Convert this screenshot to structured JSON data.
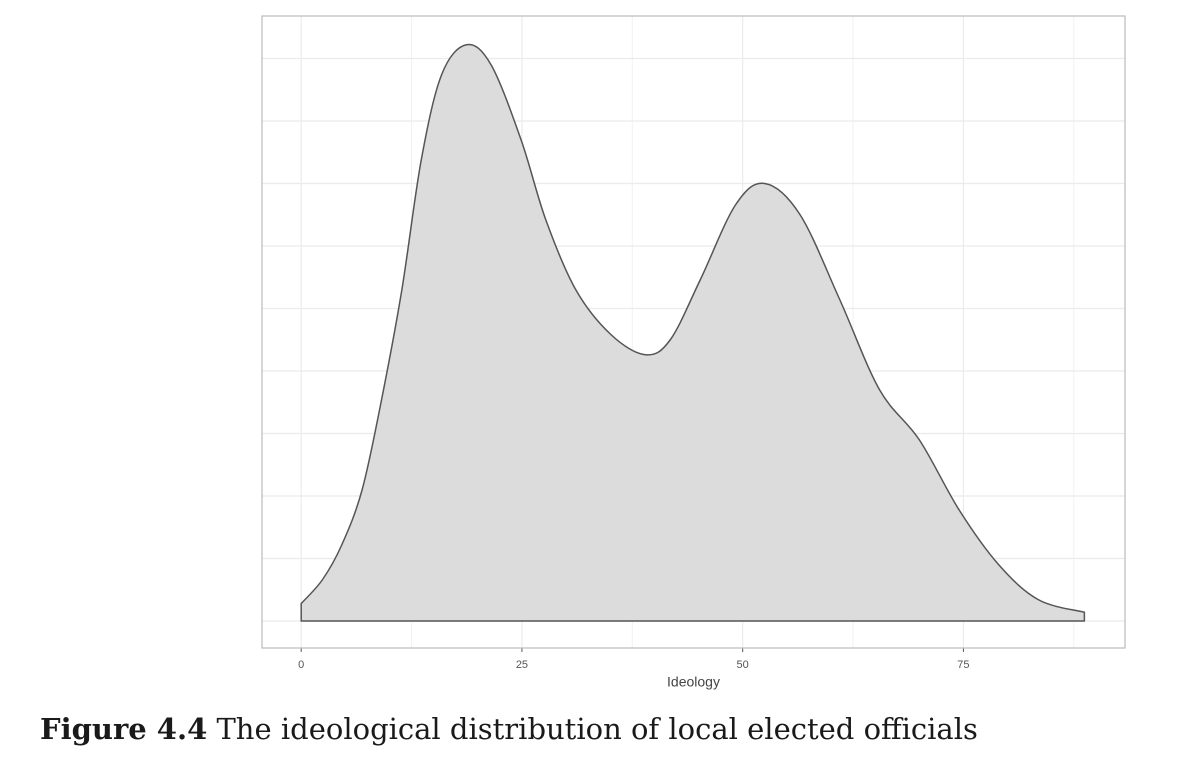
{
  "chart_data": {
    "type": "density",
    "x_label": "Ideology",
    "x": [
      0,
      2.4,
      4.6,
      6.9,
      9.1,
      11.4,
      13.6,
      15.9,
      18.7,
      21.5,
      24.9,
      27.7,
      31.1,
      35.1,
      39.0,
      41.8,
      45.2,
      49.2,
      52.5,
      56.5,
      61.0,
      65.5,
      70.0,
      74.5,
      79.0,
      83.5,
      88.7
    ],
    "values": [
      0.0014,
      0.0033,
      0.0061,
      0.0105,
      0.0177,
      0.0265,
      0.0369,
      0.0437,
      0.0461,
      0.0445,
      0.0385,
      0.0321,
      0.0265,
      0.0229,
      0.0213,
      0.0225,
      0.0273,
      0.0333,
      0.035,
      0.0325,
      0.0257,
      0.0185,
      0.0145,
      0.0089,
      0.0045,
      0.0017,
      0.0007
    ],
    "color": "#dcdcdc",
    "line_color": "#555555",
    "xlim": [
      -4.44,
      93.3
    ],
    "ylim": [
      -0.00216,
      0.0484
    ],
    "xticks": [
      0,
      25,
      50,
      75
    ],
    "x_minor_ticks": [
      12.5,
      37.5,
      62.5,
      87.5
    ],
    "yticks": [
      0,
      0.005,
      0.01,
      0.015,
      0.02,
      0.025,
      0.03,
      0.035,
      0.04,
      0.045
    ],
    "y_tick_labels": false,
    "grid": true
  },
  "figure_label": "Figure 4.4",
  "caption": "The ideological distribution of local elected officials"
}
